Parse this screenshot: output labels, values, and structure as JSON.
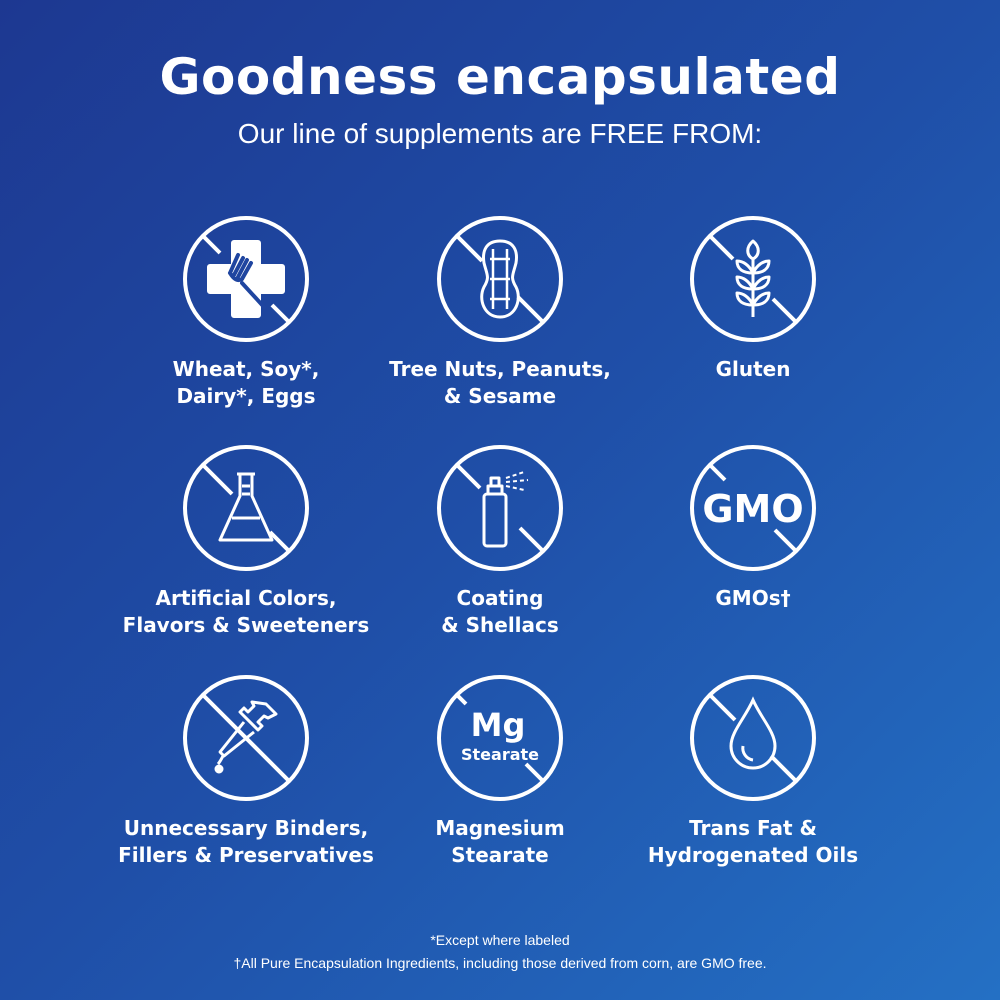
{
  "header": {
    "title": "Goodness encapsulated",
    "subtitle": "Our line of supplements are FREE FROM:"
  },
  "items": [
    {
      "label": "Wheat, Soy*,\nDairy*, Eggs",
      "icon": "allergen-cross-fork-icon"
    },
    {
      "label": "Tree Nuts, Peanuts,\n& Sesame",
      "icon": "peanut-icon"
    },
    {
      "label": "Gluten",
      "icon": "wheat-icon"
    },
    {
      "label": "Artificial Colors,\nFlavors & Sweeteners",
      "icon": "flask-icon"
    },
    {
      "label": "Coating\n& Shellacs",
      "icon": "spray-can-icon"
    },
    {
      "label": "GMOs†",
      "icon": "gmo-icon",
      "icon_text": "GMO"
    },
    {
      "label": "Unnecessary Binders,\nFillers & Preservatives",
      "icon": "dropper-icon"
    },
    {
      "label": "Magnesium\nStearate",
      "icon": "mg-stearate-icon",
      "icon_text": "Mg",
      "icon_subtext": "Stearate"
    },
    {
      "label": "Trans Fat &\nHydrogenated Oils",
      "icon": "oil-drop-icon"
    }
  ],
  "footer": {
    "note1": "*Except where labeled",
    "note2": "†All Pure Encapsulation Ingredients, including those derived from corn, are GMO free."
  },
  "colors": {
    "bg_start": "#1d3891",
    "bg_end": "#2470c4",
    "foreground": "#ffffff"
  }
}
